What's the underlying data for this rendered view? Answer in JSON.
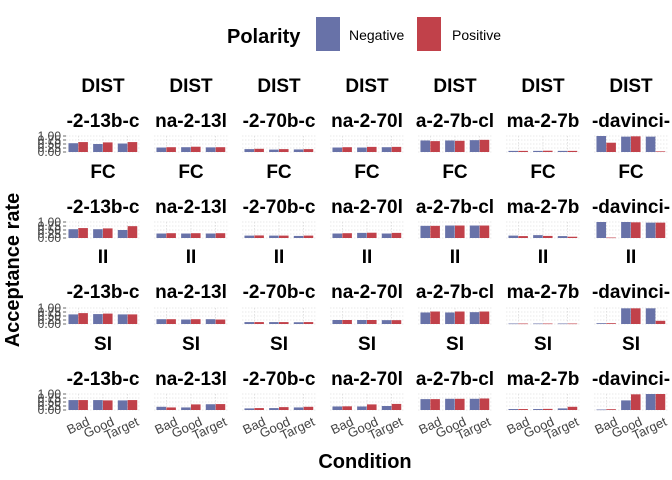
{
  "chart_data": {
    "type": "bar",
    "xlabel": "Condition",
    "ylabel": "Acceptance rate",
    "ylim": [
      0,
      1
    ],
    "y_ticks": [
      "0.00",
      "0.25",
      "0.50",
      "0.75",
      "1.00"
    ],
    "categories": [
      "Bad",
      "Good",
      "Target"
    ],
    "legend": {
      "title": "Polarity",
      "position": "top",
      "entries": [
        {
          "name": "Negative",
          "color": "#6872A8"
        },
        {
          "name": "Positive",
          "color": "#C1414A"
        }
      ]
    },
    "grid": true,
    "facet_rows": [
      "DIST",
      "FC",
      "II",
      "SI"
    ],
    "facet_cols": [
      "-2-13b-c",
      "na-2-13l",
      "-2-70b-c",
      "na-2-70l",
      "a-2-7b-cl",
      "ma-2-7b",
      "-davinci-"
    ],
    "panels": [
      [
        {
          "Negative": [
            0.55,
            0.5,
            0.53
          ],
          "Positive": [
            0.62,
            0.6,
            0.62
          ]
        },
        {
          "Negative": [
            0.28,
            0.3,
            0.29
          ],
          "Positive": [
            0.3,
            0.33,
            0.3
          ]
        },
        {
          "Negative": [
            0.18,
            0.15,
            0.16
          ],
          "Positive": [
            0.2,
            0.18,
            0.18
          ]
        },
        {
          "Negative": [
            0.28,
            0.28,
            0.3
          ],
          "Positive": [
            0.3,
            0.32,
            0.32
          ]
        },
        {
          "Negative": [
            0.72,
            0.72,
            0.74
          ],
          "Positive": [
            0.68,
            0.7,
            0.76
          ]
        },
        {
          "Negative": [
            0.07,
            0.07,
            0.07
          ],
          "Positive": [
            0.07,
            0.08,
            0.07
          ]
        },
        {
          "Negative": [
            1.0,
            0.96,
            0.96
          ],
          "Positive": [
            0.58,
            0.98,
            0.04
          ]
        }
      ],
      [
        {
          "Negative": [
            0.55,
            0.55,
            0.5
          ],
          "Positive": [
            0.62,
            0.6,
            0.74
          ]
        },
        {
          "Negative": [
            0.28,
            0.28,
            0.28
          ],
          "Positive": [
            0.3,
            0.3,
            0.3
          ]
        },
        {
          "Negative": [
            0.15,
            0.15,
            0.13
          ],
          "Positive": [
            0.16,
            0.15,
            0.15
          ]
        },
        {
          "Negative": [
            0.28,
            0.32,
            0.28
          ],
          "Positive": [
            0.3,
            0.33,
            0.32
          ]
        },
        {
          "Negative": [
            0.76,
            0.78,
            0.78
          ],
          "Positive": [
            0.76,
            0.78,
            0.78
          ]
        },
        {
          "Negative": [
            0.15,
            0.18,
            0.12
          ],
          "Positive": [
            0.12,
            0.13,
            0.08
          ]
        },
        {
          "Negative": [
            1.0,
            1.0,
            0.96
          ],
          "Positive": [
            0.03,
            0.98,
            0.96
          ]
        }
      ],
      [
        {
          "Negative": [
            0.6,
            0.62,
            0.6
          ],
          "Positive": [
            0.68,
            0.65,
            0.6
          ]
        },
        {
          "Negative": [
            0.3,
            0.28,
            0.3
          ],
          "Positive": [
            0.3,
            0.3,
            0.28
          ]
        },
        {
          "Negative": [
            0.12,
            0.12,
            0.11
          ],
          "Positive": [
            0.12,
            0.12,
            0.12
          ]
        },
        {
          "Negative": [
            0.25,
            0.25,
            0.24
          ],
          "Positive": [
            0.25,
            0.25,
            0.24
          ]
        },
        {
          "Negative": [
            0.72,
            0.72,
            0.74
          ],
          "Positive": [
            0.78,
            0.78,
            0.78
          ]
        },
        {
          "Negative": [
            0.03,
            0.03,
            0.03
          ],
          "Positive": [
            0.03,
            0.03,
            0.03
          ]
        },
        {
          "Negative": [
            0.05,
            0.98,
            0.98
          ],
          "Positive": [
            0.05,
            0.98,
            0.2
          ]
        }
      ],
      [
        {
          "Negative": [
            0.62,
            0.62,
            0.6
          ],
          "Positive": [
            0.62,
            0.6,
            0.62
          ]
        },
        {
          "Negative": [
            0.2,
            0.16,
            0.36
          ],
          "Positive": [
            0.16,
            0.35,
            0.37
          ]
        },
        {
          "Negative": [
            0.1,
            0.12,
            0.16
          ],
          "Positive": [
            0.12,
            0.18,
            0.2
          ]
        },
        {
          "Negative": [
            0.22,
            0.22,
            0.25
          ],
          "Positive": [
            0.23,
            0.35,
            0.38
          ]
        },
        {
          "Negative": [
            0.68,
            0.7,
            0.7
          ],
          "Positive": [
            0.68,
            0.7,
            0.72
          ]
        },
        {
          "Negative": [
            0.06,
            0.06,
            0.1
          ],
          "Positive": [
            0.06,
            0.07,
            0.2
          ]
        },
        {
          "Negative": [
            0.03,
            0.6,
            1.0
          ],
          "Positive": [
            0.05,
            0.98,
            1.0
          ]
        }
      ]
    ]
  }
}
